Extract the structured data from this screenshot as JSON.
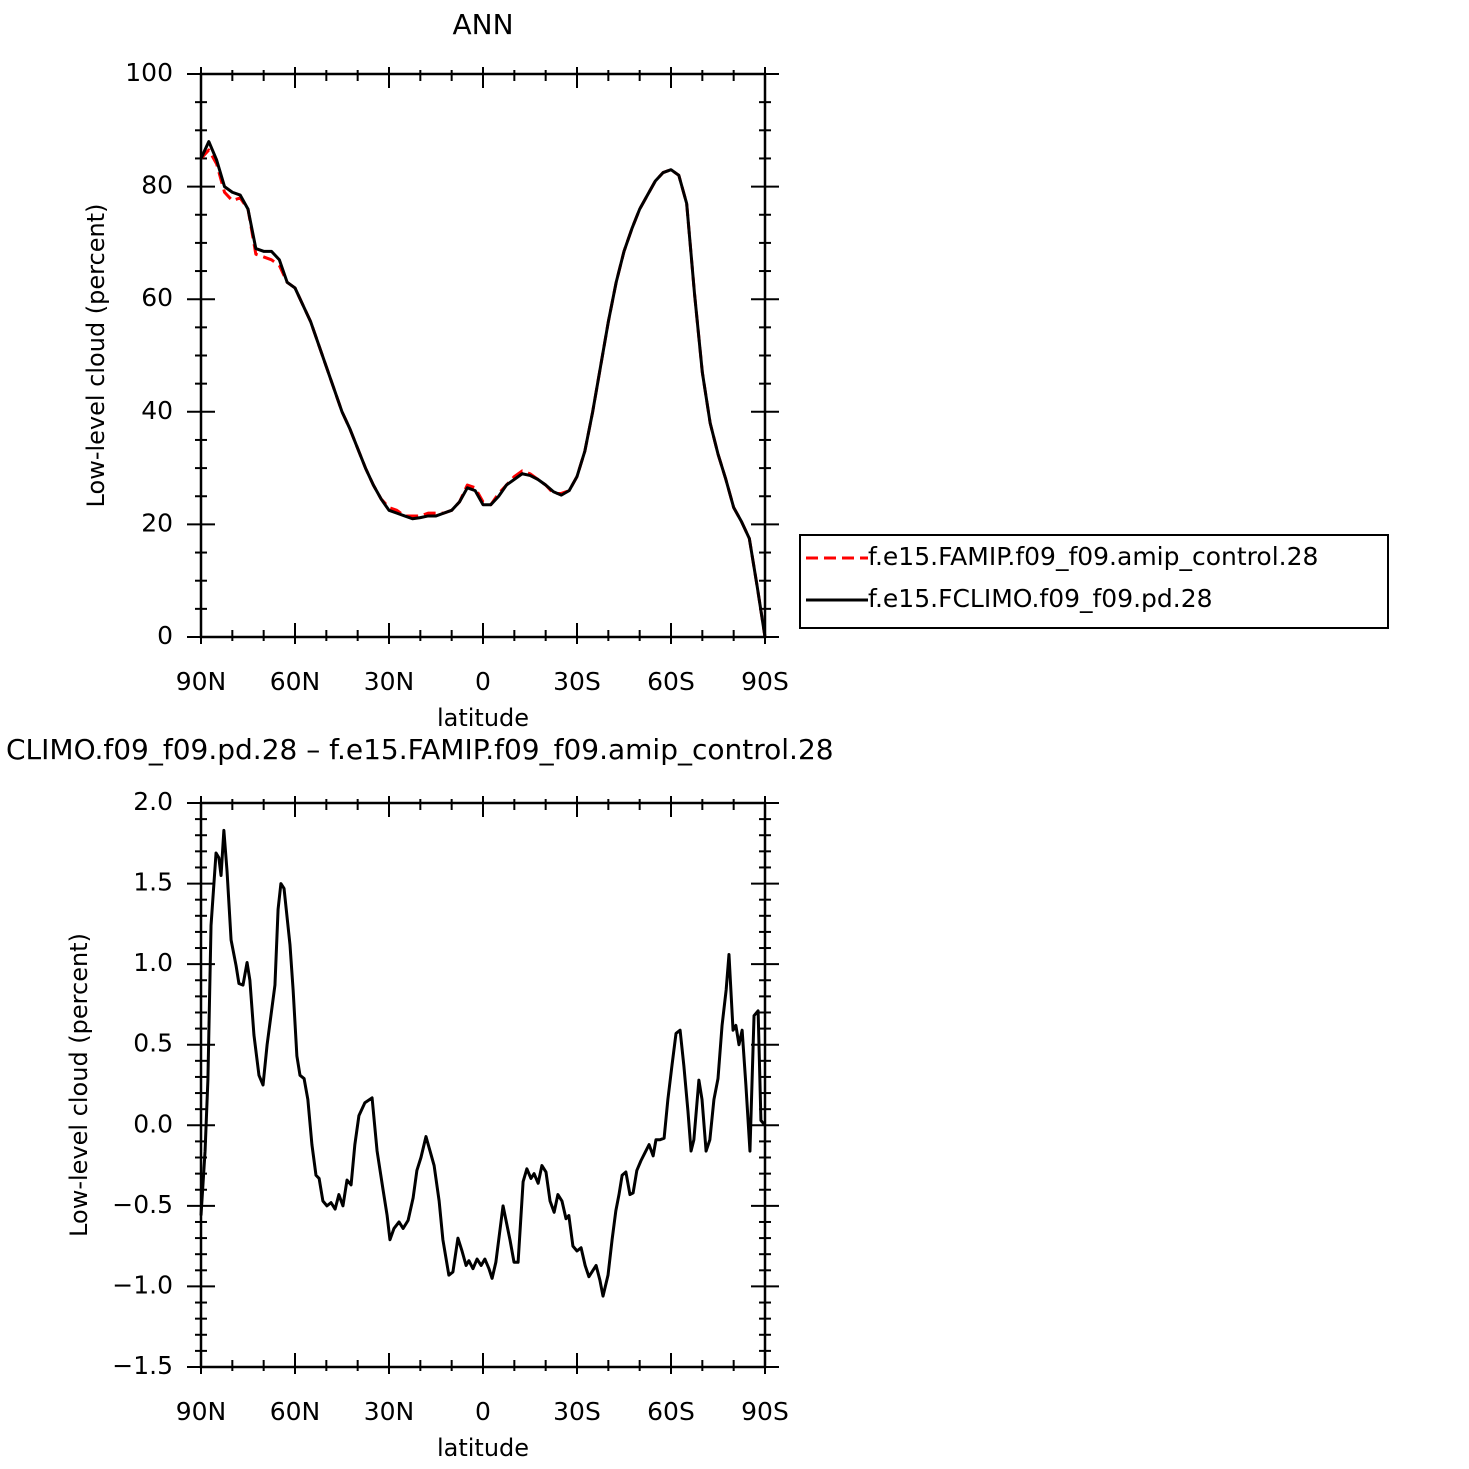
{
  "chart_data": [
    {
      "type": "line",
      "title": "ANN",
      "x_label": "latitude",
      "y_label": "Low-level cloud (percent)",
      "x": [
        90,
        87.5,
        85,
        82.5,
        80,
        77.5,
        75,
        72.5,
        70,
        67.5,
        65,
        62.5,
        60,
        57.5,
        55,
        52.5,
        50,
        47.5,
        45,
        42.5,
        40,
        37.5,
        35,
        32.5,
        30,
        27.5,
        25,
        22.5,
        20,
        17.5,
        15,
        12.5,
        10,
        7.5,
        5,
        2.5,
        0,
        -2.5,
        -5,
        -7.5,
        -10,
        -12.5,
        -15,
        -17.5,
        -20,
        -22.5,
        -25,
        -27.5,
        -30,
        -32.5,
        -35,
        -37.5,
        -40,
        -42.5,
        -45,
        -47.5,
        -50,
        -52.5,
        -55,
        -57.5,
        -60,
        -62.5,
        -65,
        -67.5,
        -70,
        -72.5,
        -75,
        -77.5,
        -80,
        -82.5,
        -85,
        -87.5,
        -90
      ],
      "series": [
        {
          "name": "f.e15.FAMIP.f09_f09.amip_control.28",
          "color": "#ff0000",
          "dashed": true,
          "values": [
            85,
            86.5,
            84,
            79,
            77.5,
            78,
            76,
            68,
            67.5,
            67,
            66,
            63,
            62,
            59,
            56,
            52,
            48,
            44,
            40,
            37,
            33.5,
            30,
            27,
            24.5,
            23,
            22.5,
            21.5,
            21.5,
            21.5,
            22,
            22,
            22,
            22.5,
            24,
            27,
            26.5,
            24,
            23.5,
            25.5,
            27,
            28.5,
            29.5,
            29,
            28,
            27,
            25.5,
            25.5,
            26,
            28.5,
            33,
            40,
            48,
            56,
            63,
            68.5,
            72.5,
            76,
            78.5,
            81,
            82.5,
            83,
            82,
            77,
            61,
            47,
            38,
            32.5,
            28,
            23,
            20.5,
            17.5,
            9,
            0
          ]
        },
        {
          "name": "f.e15.FCLIMO.f09_f09.pd.28",
          "color": "#000000",
          "dashed": false,
          "values": [
            85,
            88,
            84.7,
            80,
            79,
            78.5,
            76,
            69,
            68.5,
            68.5,
            67,
            63,
            62,
            59,
            56,
            52,
            48,
            44,
            40,
            37,
            33.5,
            30,
            27,
            24.5,
            22.5,
            22,
            21.5,
            21,
            21.2,
            21.5,
            21.5,
            22,
            22.5,
            24,
            26.5,
            26,
            23.5,
            23.5,
            25,
            27,
            28,
            29,
            28.7,
            28,
            27,
            25.8,
            25.2,
            26,
            28.5,
            33,
            40,
            48,
            56,
            63,
            68.5,
            72.5,
            76,
            78.5,
            81,
            82.5,
            83,
            82,
            77,
            61,
            47,
            38,
            32.5,
            28,
            23,
            20.5,
            17.5,
            9,
            0
          ]
        }
      ],
      "xlim": [
        90,
        -90
      ],
      "xticks": [
        {
          "value": 90,
          "label": "90N"
        },
        {
          "value": 60,
          "label": "60N"
        },
        {
          "value": 30,
          "label": "30N"
        },
        0,
        {
          "value": -30,
          "label": "30S"
        },
        {
          "value": -60,
          "label": "60S"
        },
        {
          "value": -90,
          "label": "90S"
        }
      ],
      "ylim": [
        0,
        100
      ],
      "yticks": [
        0,
        20,
        40,
        60,
        80,
        100
      ],
      "legend": "right"
    },
    {
      "type": "line",
      "title": "CLIMO.f09_f09.pd.28 – f.e15.FAMIP.f09_f09.amip_control.28",
      "x_label": "latitude",
      "y_label": "Low-level cloud (percent)",
      "x": [
        90,
        88.7,
        87.8,
        86.8,
        85.2,
        84.3,
        83.6,
        82.7,
        81.7,
        80.4,
        78.8,
        77.9,
        76.6,
        75.3,
        74.4,
        73.1,
        71.5,
        70.2,
        68.9,
        66.4,
        65.4,
        64.5,
        63.5,
        61.6,
        60.6,
        59.4,
        58.4,
        57.1,
        55.9,
        54.6,
        53.3,
        52.3,
        51.1,
        49.8,
        48.5,
        47.2,
        46.0,
        44.7,
        43.4,
        42.1,
        40.9,
        39.6,
        37.7,
        35.4,
        33.8,
        31.9,
        30.6,
        29.7,
        28.4,
        26.8,
        25.5,
        23.9,
        22.3,
        21.1,
        19.8,
        18.2,
        16.9,
        15.6,
        14.0,
        12.8,
        10.9,
        9.6,
        8.0,
        6.7,
        5.4,
        4.5,
        3.2,
        1.9,
        0.6,
        -0.6,
        -1.9,
        -2.9,
        -4.1,
        -6.4,
        -8.6,
        -9.9,
        -11.2,
        -12.8,
        -14.0,
        -15.3,
        -16.3,
        -17.6,
        -18.8,
        -20.1,
        -21.4,
        -22.7,
        -23.9,
        -25.2,
        -26.5,
        -27.4,
        -28.7,
        -30.0,
        -31.3,
        -32.6,
        -33.8,
        -35.1,
        -36.1,
        -37.3,
        -38.3,
        -39.9,
        -41.2,
        -42.4,
        -43.4,
        -44.4,
        -45.6,
        -46.9,
        -47.9,
        -49.1,
        -50.4,
        -51.7,
        -53.0,
        -54.3,
        -55.2,
        -56.5,
        -57.8,
        -59.0,
        -60.3,
        -61.6,
        -62.9,
        -64.1,
        -65.4,
        -66.4,
        -67.3,
        -68.9,
        -69.9,
        -71.2,
        -72.4,
        -73.7,
        -75.0,
        -76.3,
        -77.6,
        -78.5,
        -79.8,
        -80.7,
        -81.7,
        -82.7,
        -83.9,
        -85.2,
        -86.5,
        -87.8,
        -88.7,
        -90
      ],
      "series": [
        {
          "color": "#000000",
          "dashed": false,
          "values": [
            -0.56,
            -0.16,
            0.28,
            1.24,
            1.69,
            1.66,
            1.55,
            1.83,
            1.58,
            1.15,
            0.99,
            0.88,
            0.87,
            1.01,
            0.9,
            0.56,
            0.31,
            0.25,
            0.5,
            0.87,
            1.34,
            1.5,
            1.47,
            1.12,
            0.84,
            0.43,
            0.31,
            0.29,
            0.16,
            -0.12,
            -0.31,
            -0.33,
            -0.47,
            -0.5,
            -0.48,
            -0.52,
            -0.43,
            -0.5,
            -0.34,
            -0.37,
            -0.12,
            0.06,
            0.14,
            0.17,
            -0.16,
            -0.4,
            -0.56,
            -0.71,
            -0.64,
            -0.6,
            -0.64,
            -0.59,
            -0.45,
            -0.28,
            -0.2,
            -0.07,
            -0.16,
            -0.25,
            -0.47,
            -0.71,
            -0.93,
            -0.91,
            -0.7,
            -0.78,
            -0.87,
            -0.84,
            -0.89,
            -0.83,
            -0.87,
            -0.83,
            -0.89,
            -0.95,
            -0.85,
            -0.5,
            -0.71,
            -0.85,
            -0.85,
            -0.35,
            -0.27,
            -0.33,
            -0.3,
            -0.36,
            -0.25,
            -0.29,
            -0.47,
            -0.54,
            -0.43,
            -0.47,
            -0.58,
            -0.56,
            -0.75,
            -0.78,
            -0.76,
            -0.87,
            -0.94,
            -0.9,
            -0.87,
            -0.96,
            -1.06,
            -0.93,
            -0.71,
            -0.53,
            -0.43,
            -0.31,
            -0.29,
            -0.43,
            -0.42,
            -0.28,
            -0.22,
            -0.17,
            -0.12,
            -0.19,
            -0.09,
            -0.09,
            -0.08,
            0.16,
            0.37,
            0.57,
            0.59,
            0.37,
            0.09,
            -0.16,
            -0.09,
            0.28,
            0.16,
            -0.16,
            -0.09,
            0.16,
            0.29,
            0.62,
            0.84,
            1.06,
            0.59,
            0.62,
            0.5,
            0.59,
            0.25,
            -0.16,
            0.68,
            0.71,
            0.03,
            0.0
          ]
        }
      ],
      "xlim": [
        90,
        -90
      ],
      "xticks": [
        {
          "value": 90,
          "label": "90N"
        },
        {
          "value": 60,
          "label": "60N"
        },
        {
          "value": 30,
          "label": "30N"
        },
        0,
        {
          "value": -30,
          "label": "30S"
        },
        {
          "value": -60,
          "label": "60S"
        },
        {
          "value": -90,
          "label": "90S"
        }
      ],
      "ylim": [
        -1.5,
        2.0
      ],
      "yticks": [
        {
          "value": -1.5,
          "label": "−1.5"
        },
        {
          "value": -1.0,
          "label": "−1.0"
        },
        {
          "value": -0.5,
          "label": "−0.5"
        },
        {
          "value": 0,
          "label": "0.0"
        },
        0.5,
        {
          "value": 1.0,
          "label": "1.0"
        },
        1.5,
        {
          "value": 2.0,
          "label": "2.0"
        }
      ]
    }
  ]
}
